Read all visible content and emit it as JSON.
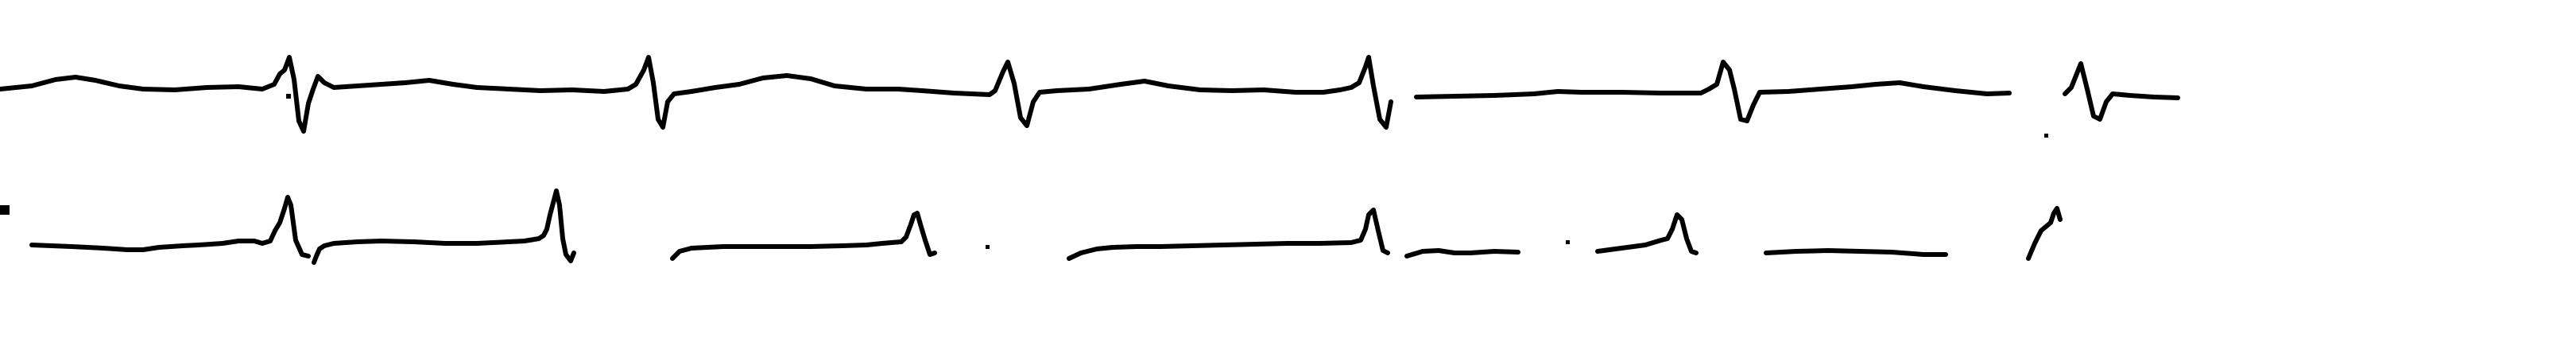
{
  "image": {
    "subject": "ecg-rhythm-strip",
    "background_color": "#ffffff",
    "ink_color": "#000000"
  },
  "leads": [
    {
      "beats": 6
    },
    {
      "beats": 6
    }
  ]
}
